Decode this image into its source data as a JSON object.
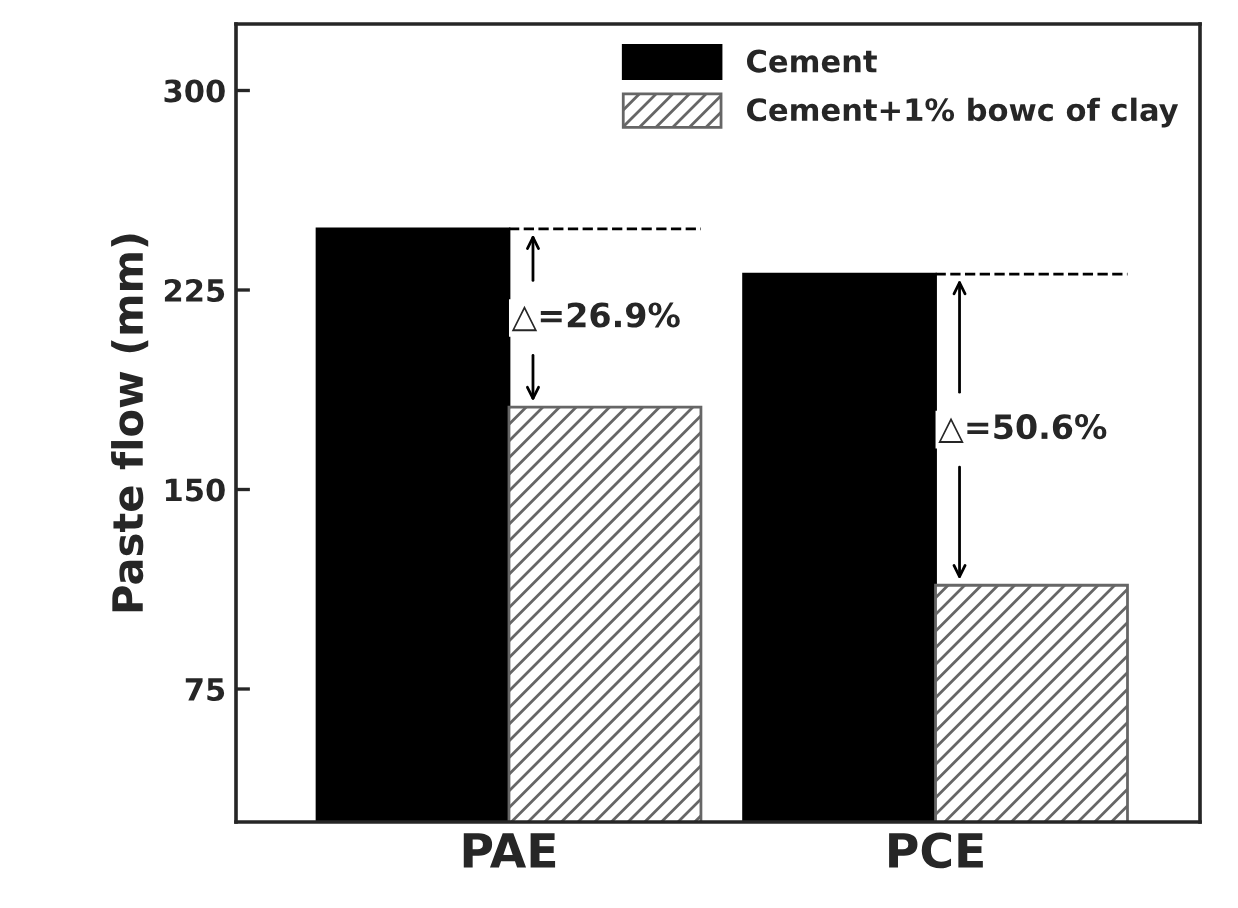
{
  "chart_data": {
    "type": "bar",
    "ylabel": "Paste flow (mm)",
    "categories": [
      "PAE",
      "PCE"
    ],
    "series": [
      {
        "name": "Cement",
        "color": "#000000",
        "values": [
          248,
          231
        ]
      },
      {
        "name": "Cement+1% bowc of clay",
        "color": "#666666",
        "values": [
          181,
          114
        ]
      }
    ],
    "ylim": [
      25,
      325
    ],
    "yticks": [
      75,
      150,
      225,
      300
    ],
    "annotations": [
      {
        "text": "△=26.9%",
        "x": "PAE",
        "y": 214.5
      },
      {
        "text": "△=50.6%",
        "x": "PCE",
        "y": 172.5
      }
    ],
    "legend": "top right",
    "grid": false
  }
}
